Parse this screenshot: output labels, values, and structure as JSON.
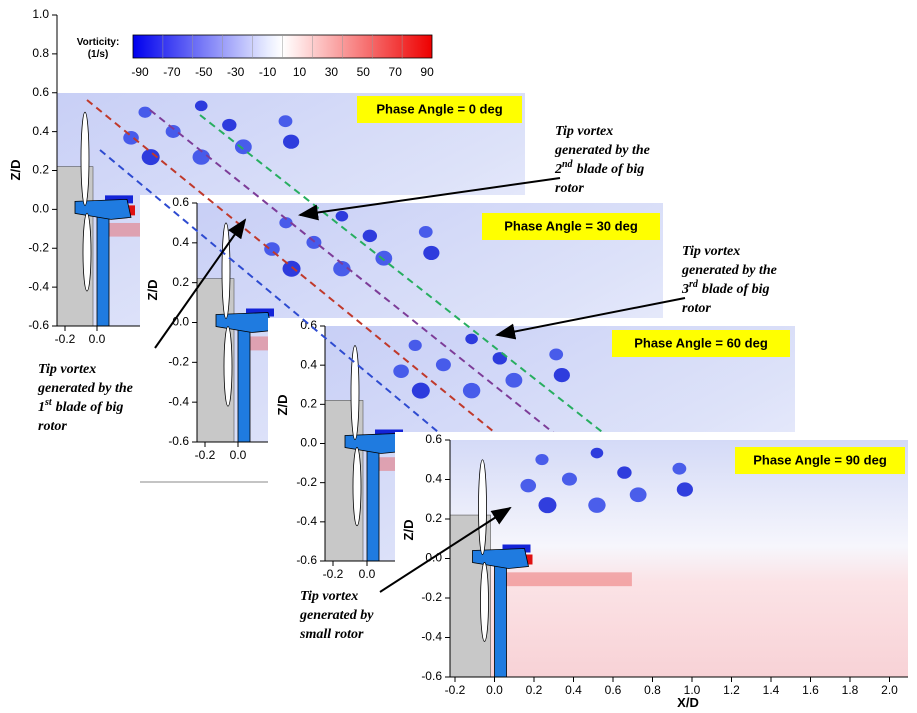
{
  "colorbar": {
    "title": "Vorticity:",
    "unit": "(1/s)",
    "labels": [
      "-90",
      "-70",
      "-50",
      "-30",
      "-10",
      "10",
      "30",
      "50",
      "70",
      "90"
    ]
  },
  "panels": [
    {
      "phase": "Phase Angle = 0 deg",
      "y_title": "Z/D",
      "y_ticks": [
        "1.0",
        "0.8",
        "0.6",
        "0.4",
        "0.2",
        "0.0",
        "-0.2",
        "-0.4",
        "-0.6"
      ],
      "x_ticks": [
        "-0.2",
        "0.0"
      ]
    },
    {
      "phase": "Phase Angle = 30 deg",
      "y_title": "Z/D",
      "y_ticks": [
        "0.6",
        "0.4",
        "0.2",
        "0.0",
        "-0.2",
        "-0.4",
        "-0.6"
      ],
      "x_ticks": [
        "-0.2",
        "0.0"
      ]
    },
    {
      "phase": "Phase Angle = 60 deg",
      "y_title": "Z/D",
      "y_ticks": [
        "0.6",
        "0.4",
        "0.2",
        "0.0",
        "-0.2",
        "-0.4",
        "-0.6"
      ],
      "x_ticks": [
        "-0.2",
        "0.0"
      ]
    },
    {
      "phase": "Phase Angle = 90 deg",
      "y_title": "Z/D",
      "y_ticks": [
        "0.6",
        "0.4",
        "0.2",
        "0.0",
        "-0.2",
        "-0.4",
        "-0.6"
      ],
      "x_ticks": [
        "-0.2",
        "0.0",
        "0.2",
        "0.4",
        "0.6",
        "0.8",
        "1.0",
        "1.2",
        "1.4",
        "1.6",
        "1.8",
        "2.0"
      ],
      "x_title": "X/D"
    }
  ],
  "annotations": [
    {
      "line1": "Tip vortex",
      "line2": "generated by the",
      "ordinal": "2",
      "suffix": "nd",
      "line3": "blade of big",
      "line4": "rotor"
    },
    {
      "line1": "Tip vortex",
      "line2": "generated by the",
      "ordinal": "3",
      "suffix": "rd",
      "line3": "blade of big",
      "line4": "rotor"
    },
    {
      "line1": "Tip vortex",
      "line2": "generated by the",
      "ordinal": "1",
      "suffix": "st",
      "line3": "blade of big",
      "line4": "rotor"
    },
    {
      "line1": "Tip vortex",
      "line2": "generated by",
      "line3": "small rotor"
    }
  ]
}
